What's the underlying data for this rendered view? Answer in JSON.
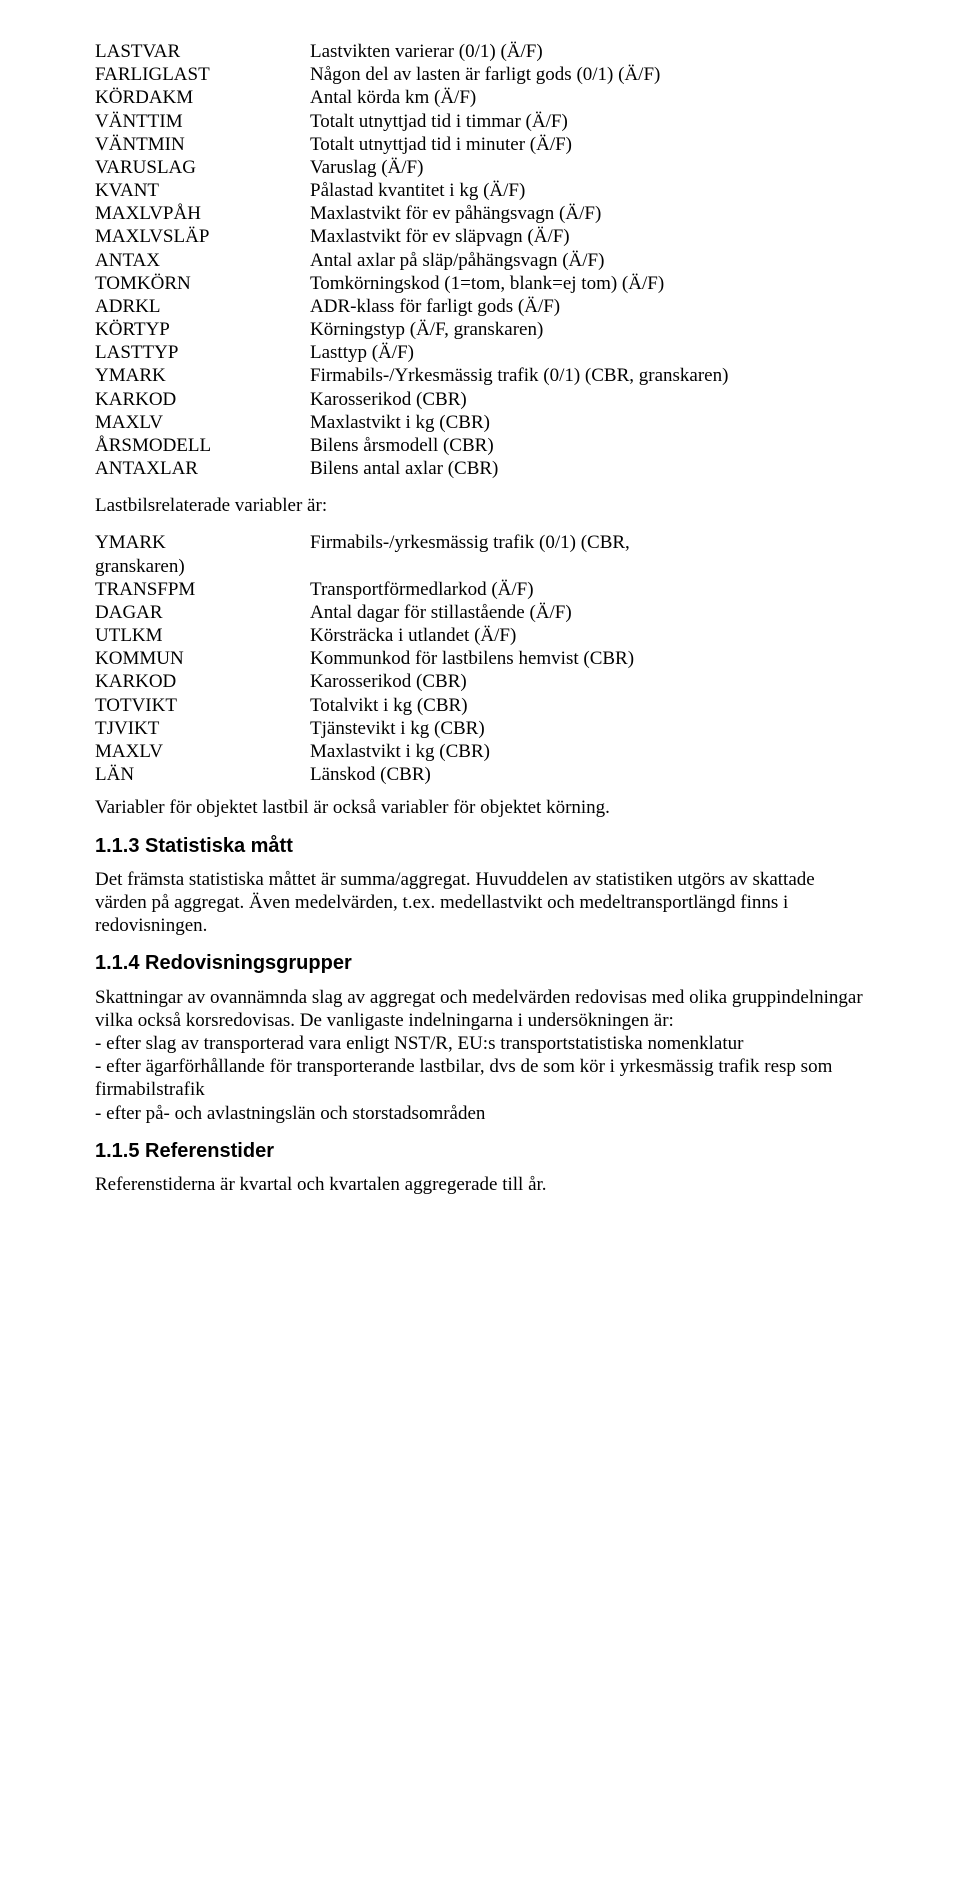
{
  "vars1": [
    {
      "code": "LASTVAR",
      "desc": "Lastvikten varierar (0/1) (Ä/F)"
    },
    {
      "code": "FARLIGLAST",
      "desc": "Någon del av lasten är farligt gods (0/1) (Ä/F)"
    },
    {
      "code": "KÖRDAKM",
      "desc": "Antal körda km (Ä/F)"
    },
    {
      "code": "VÄNTTIM",
      "desc": "Totalt utnyttjad tid i timmar (Ä/F)"
    },
    {
      "code": "VÄNTMIN",
      "desc": "Totalt utnyttjad tid i minuter (Ä/F)"
    },
    {
      "code": "VARUSLAG",
      "desc": "Varuslag (Ä/F)"
    },
    {
      "code": "KVANT",
      "desc": "Pålastad kvantitet i kg (Ä/F)"
    },
    {
      "code": "MAXLVPÅH",
      "desc": "Maxlastvikt för ev påhängsvagn (Ä/F)"
    },
    {
      "code": "MAXLVSLÄP",
      "desc": "Maxlastvikt för ev släpvagn (Ä/F)"
    },
    {
      "code": "ANTAX",
      "desc": "Antal axlar på släp/påhängsvagn (Ä/F)"
    },
    {
      "code": "TOMKÖRN",
      "desc": "Tomkörningskod (1=tom, blank=ej tom) (Ä/F)"
    },
    {
      "code": "ADRKL",
      "desc": "ADR-klass för farligt gods (Ä/F)"
    },
    {
      "code": "KÖRTYP",
      "desc": "Körningstyp (Ä/F, granskaren)"
    },
    {
      "code": "LASTTYP",
      "desc": "Lasttyp (Ä/F)"
    },
    {
      "code": "YMARK",
      "desc": "Firmabils-/Yrkesmässig trafik (0/1) (CBR, granskaren)"
    },
    {
      "code": "KARKOD",
      "desc": "Karosserikod (CBR)"
    },
    {
      "code": "MAXLV",
      "desc": "Maxlastvikt i kg (CBR)"
    },
    {
      "code": "ÅRSMODELL",
      "desc": "Bilens årsmodell (CBR)"
    },
    {
      "code": "ANTAXLAR",
      "desc": "Bilens antal axlar  (CBR)"
    }
  ],
  "section2_label": "Lastbilsrelaterade variabler är:",
  "vars2": [
    {
      "code": "YMARK\ngranskaren)",
      "desc": "Firmabils-/yrkesmässig trafik (0/1) (CBR,"
    },
    {
      "code": "TRANSFPM",
      "desc": "Transportförmedlarkod (Ä/F)"
    },
    {
      "code": "DAGAR",
      "desc": "Antal dagar för stillastående (Ä/F)"
    },
    {
      "code": "UTLKM",
      "desc": "Körsträcka i utlandet (Ä/F)"
    },
    {
      "code": "KOMMUN",
      "desc": "Kommunkod för lastbilens hemvist (CBR)"
    },
    {
      "code": "KARKOD",
      "desc": "Karosserikod (CBR)"
    },
    {
      "code": "TOTVIKT",
      "desc": "Totalvikt i kg (CBR)"
    },
    {
      "code": "TJVIKT",
      "desc": "Tjänstevikt i kg (CBR)"
    },
    {
      "code": "MAXLV",
      "desc": "Maxlastvikt i kg (CBR)"
    },
    {
      "code": "LÄN",
      "desc": "Länskod (CBR)"
    }
  ],
  "para_after_vars2": "Variabler för objektet lastbil är också variabler för objektet  körning.",
  "heading_113": "1.1.3 Statistiska mått",
  "para_113": "Det främsta statistiska måttet är summa/aggregat. Huvuddelen av statistiken utgörs av skattade värden på aggregat. Även medelvärden, t.ex. medellastvikt och medeltransportlängd finns i redovisningen.",
  "heading_114": "1.1.4 Redovisningsgrupper",
  "para_114a": "Skattningar av ovannämnda slag av aggregat och medelvärden redovisas med olika gruppindelningar vilka också korsredovisas. De vanligaste indelningarna i undersökningen är:",
  "bullets_114": [
    "- efter slag av transporterad vara enligt NST/R, EU:s transportstatistiska nomenklatur",
    "- efter ägarförhållande för transporterande lastbilar, dvs de som kör i yrkesmässig trafik resp som firmabilstrafik",
    "- efter på- och avlastningslän och storstadsområden"
  ],
  "heading_115": "1.1.5 Referenstider",
  "para_115": "Referenstiderna är kvartal och kvartalen aggregerade till år."
}
